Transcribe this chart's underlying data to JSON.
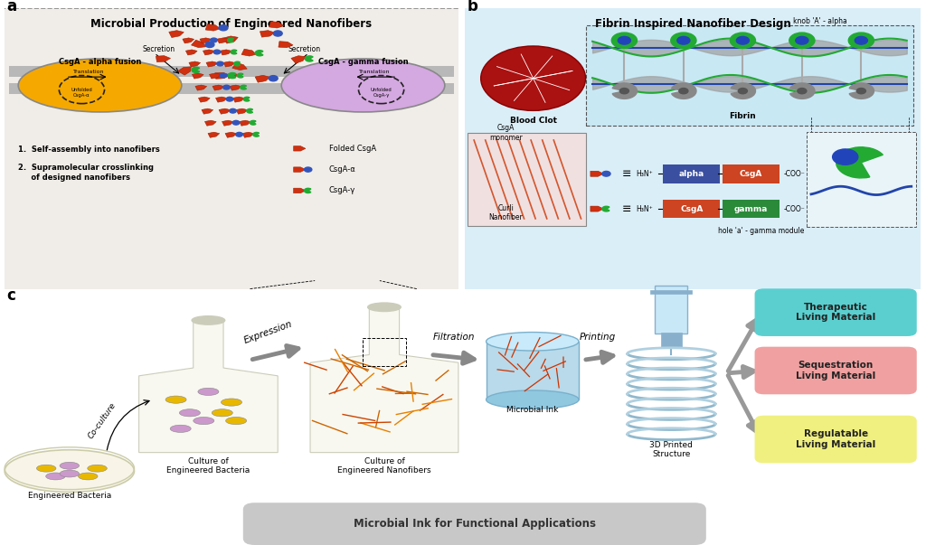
{
  "fig_width": 10.24,
  "fig_height": 6.03,
  "bg_color": "#ffffff",
  "panel_a": {
    "title": "Microbial Production of Engineered Nanofibers",
    "box_bg": "#f0ede8",
    "left_cell_color": "#f5a800",
    "right_cell_color": "#d4a8e0",
    "label_a": "a",
    "left_label": "CsgA - alpha fusion",
    "right_label": "CsgA - gamma fusion",
    "secretion_label": "Secretion",
    "legend_items": [
      "Folded CsgA",
      "CsgA-α",
      "CsgA-γ"
    ],
    "process_line1": "1.  Self-assembly into nanofibers",
    "process_line2": "2.  Supramolecular crosslinking\n     of designed nanofibers",
    "translation_label": "Translation",
    "unfolded_alpha": "Unfolded\nCsgA-α",
    "unfolded_gamma": "Unfolded\nCsgA-γ"
  },
  "panel_b": {
    "title": "Fibrin Inspired Nanofiber Design",
    "box_bg": "#daeef8",
    "label_b": "b",
    "blood_clot_label": "Blood Clot",
    "fibrin_label": "Fibrin",
    "curli_label": "Curli\nNanofiber",
    "csgA_monomer_label": "CsgA\nmonomer",
    "knob_label": "knob 'A' - alpha",
    "hole_label": "hole 'a' - gamma module",
    "alpha_color": "#3a4fa0",
    "csga_color": "#cc4422",
    "gamma_color": "#2a8a3a"
  },
  "panel_c": {
    "label_c": "c",
    "expression_label": "Expression",
    "filtration_label": "Filtration",
    "printing_label": "Printing",
    "coculture_label": "Co-culture",
    "engineered_bacteria_label": "Engineered Bacteria",
    "culture_bacteria_label": "Culture of\nEngineered Bacteria",
    "culture_nanofibers_label": "Culture of\nEngineered Nanofibers",
    "microbial_ink_label": "Microbial Ink",
    "printed_label": "3D Printed\nStructure",
    "ink_banner": "Microbial Ink for Functional Applications",
    "therapeutic_label": "Therapeutic\nLiving Material",
    "therapeutic_color": "#5bcfcf",
    "sequestration_label": "Sequestration\nLiving Material",
    "sequestration_color": "#f0a0a0",
    "regulatable_label": "Regulatable\nLiving Material",
    "regulatable_color": "#f0f080"
  }
}
